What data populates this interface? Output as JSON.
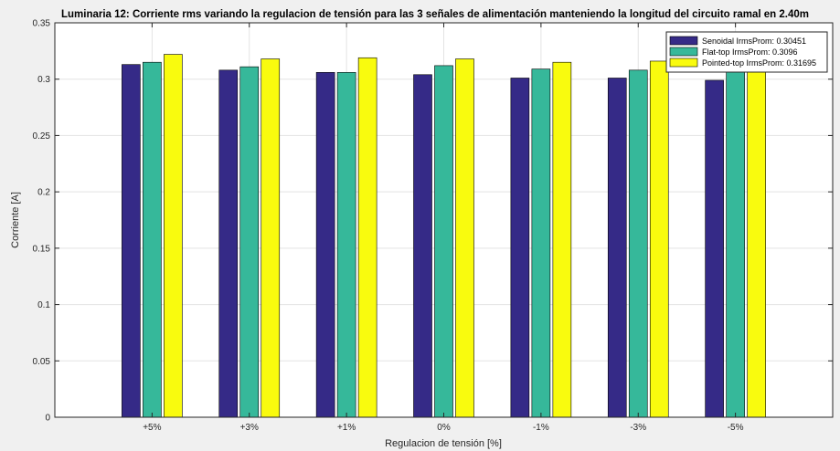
{
  "chart_data": {
    "type": "bar",
    "title": "Luminaria 12: Corriente rms variando la regulacion de tensión para las 3 señales de alimentación manteniendo la longitud del circuito ramal en 2.40m",
    "xlabel": "Regulacion de tensión [%]",
    "ylabel": "Corriente [A]",
    "ylim": [
      0,
      0.35
    ],
    "yticks": [
      "0",
      "0.05",
      "0.1",
      "0.15",
      "0.2",
      "0.25",
      "0.3",
      "0.35"
    ],
    "categories": [
      "+5%",
      "+3%",
      "+1%",
      "0%",
      "-1%",
      "-3%",
      "-5%"
    ],
    "grid": true,
    "legend_position": "top-right",
    "series": [
      {
        "name": "Senoidal IrmsProm: 0.30451",
        "color": "#352a87",
        "values": [
          0.313,
          0.308,
          0.306,
          0.304,
          0.301,
          0.301,
          0.299
        ]
      },
      {
        "name": "Flat-top IrmsProm: 0.3096",
        "color": "#36b89a",
        "values": [
          0.315,
          0.311,
          0.306,
          0.312,
          0.309,
          0.308,
          0.307
        ]
      },
      {
        "name": "Pointed-top IrmsProm: 0.31695",
        "color": "#f9fb0e",
        "values": [
          0.322,
          0.318,
          0.319,
          0.318,
          0.315,
          0.316,
          0.312
        ]
      }
    ]
  }
}
